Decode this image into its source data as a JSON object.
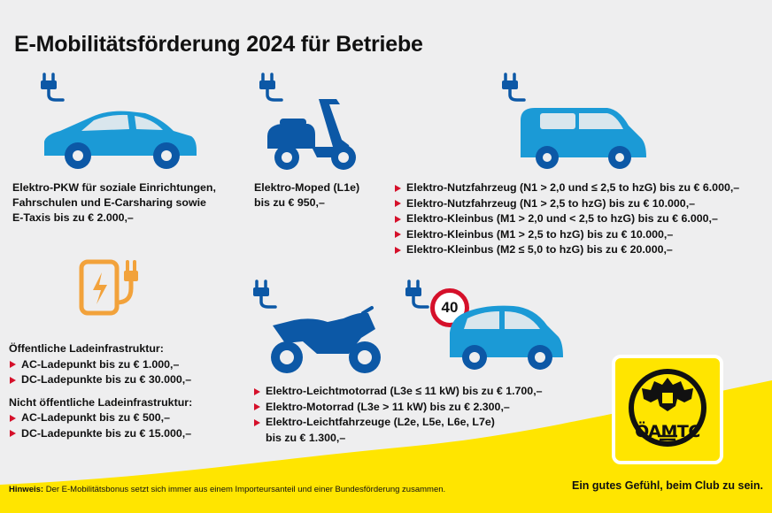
{
  "title": "E-Mobilitätsförderung 2024 für Betriebe",
  "pkw": {
    "lines": [
      "Elektro-PKW für soziale Einrichtungen,",
      "Fahrschulen und E-Carsharing sowie",
      "E-Taxis bis zu € 2.000,–"
    ]
  },
  "moped": {
    "lines": [
      "Elektro-Moped (L1e)",
      "bis zu € 950,–"
    ]
  },
  "nutzfahrzeug": {
    "items": [
      "Elektro-Nutzfahrzeug (N1 > 2,0 und ≤ 2,5 to hzG) bis zu € 6.000,–",
      "Elektro-Nutzfahrzeug (N1 > 2,5 to hzG) bis zu € 10.000,–",
      "Elektro-Kleinbus (M1 > 2,0 und < 2,5 to hzG) bis zu € 6.000,–",
      "Elektro-Kleinbus (M1 > 2,5 to hzG) bis zu € 10.000,–",
      "Elektro-Kleinbus (M2 ≤ 5,0 to hzG) bis zu € 20.000,–"
    ]
  },
  "lade": {
    "heading_public": "Öffentliche Ladeinfrastruktur:",
    "public": [
      "AC-Ladepunkt bis zu € 1.000,–",
      "DC-Ladepunkte bis zu € 30.000,–"
    ],
    "heading_private": "Nicht öffentliche Ladeinfrastruktur:",
    "private": [
      "AC-Ladepunkt bis zu € 500,–",
      "DC-Ladepunkte bis zu  € 15.000,–"
    ]
  },
  "leicht": {
    "items": [
      "Elektro-Leichtmotorrad (L3e ≤ 11 kW) bis zu € 1.700,–",
      "Elektro-Motorrad (L3e > 11 kW) bis zu € 2.300,–",
      "Elektro-Leichtfahrzeuge (L2e, L5e, L6e, L7e)"
    ],
    "cont": "bis zu € 1.300,–"
  },
  "speed_sign": "40",
  "logo": {
    "text": "ÖAMTC"
  },
  "footer": {
    "hint_label": "Hinweis:",
    "hint_text": " Der E-Mobilitätsbonus setzt sich immer aus einem Importeursanteil und einer Bundesförderung zusammen.",
    "slogan": "Ein gutes Gefühl, beim Club zu sein."
  },
  "colors": {
    "blue": "#1b9ad6",
    "navy": "#0c58a6",
    "red": "#d5102a",
    "yellow": "#ffe500",
    "orange": "#f2a23b"
  },
  "icons": [
    "plug-icon",
    "electric-car-icon",
    "scooter-icon",
    "van-icon",
    "charging-station-icon",
    "motorcycle-icon",
    "microcar-icon",
    "speed-limit-sign-icon",
    "oeamtc-logo"
  ]
}
